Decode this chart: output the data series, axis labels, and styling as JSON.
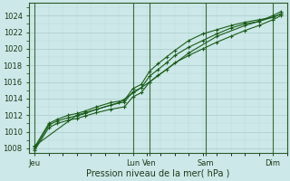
{
  "bg_color": "#cde8e8",
  "grid_major_color": "#a8cccc",
  "grid_minor_color": "#b8d8d8",
  "line_color": "#1a5c1a",
  "xlabel": "Pression niveau de la mer( hPa )",
  "ylim": [
    1007.5,
    1025.5
  ],
  "yticks": [
    1008,
    1010,
    1012,
    1014,
    1016,
    1018,
    1020,
    1022,
    1024
  ],
  "x_day_labels": [
    "Jeu",
    "Lun",
    "Ven",
    "Sam",
    "Dim"
  ],
  "x_day_positions": [
    0,
    35,
    41,
    61,
    85
  ],
  "xlim": [
    -2,
    90
  ],
  "series": [
    [
      0,
      1008.0,
      5,
      1010.8,
      8,
      1011.3,
      12,
      1011.7,
      15,
      1011.9,
      18,
      1012.2,
      22,
      1012.7,
      27,
      1013.2,
      32,
      1013.6,
      35,
      1014.8,
      38,
      1015.3,
      41,
      1016.7,
      44,
      1017.5,
      47,
      1018.3,
      50,
      1019.2,
      55,
      1020.2,
      60,
      1021.0,
      65,
      1021.8,
      70,
      1022.5,
      75,
      1023.0,
      80,
      1023.3,
      85,
      1024.0,
      88,
      1024.5
    ],
    [
      0,
      1008.2,
      5,
      1011.0,
      8,
      1011.5,
      12,
      1012.0,
      15,
      1012.2,
      18,
      1012.5,
      22,
      1013.0,
      27,
      1013.5,
      32,
      1013.8,
      35,
      1015.2,
      38,
      1015.7,
      41,
      1017.3,
      44,
      1018.2,
      47,
      1019.0,
      50,
      1019.8,
      55,
      1021.0,
      60,
      1021.8,
      65,
      1022.3,
      70,
      1022.8,
      75,
      1023.2,
      80,
      1023.5,
      85,
      1023.8,
      88,
      1024.2
    ],
    [
      0,
      1008.3,
      15,
      1012.0,
      30,
      1013.5,
      41,
      1016.0,
      55,
      1019.5,
      65,
      1021.5,
      75,
      1022.8,
      85,
      1023.8,
      88,
      1024.2
    ],
    [
      0,
      1007.8,
      5,
      1010.5,
      8,
      1011.0,
      12,
      1011.4,
      15,
      1011.6,
      18,
      1011.9,
      22,
      1012.3,
      27,
      1012.7,
      32,
      1013.0,
      35,
      1014.2,
      38,
      1014.7,
      41,
      1016.0,
      44,
      1016.8,
      47,
      1017.5,
      50,
      1018.3,
      55,
      1019.2,
      60,
      1020.0,
      65,
      1020.8,
      70,
      1021.5,
      75,
      1022.2,
      80,
      1022.8,
      85,
      1023.5,
      88,
      1024.0
    ]
  ]
}
